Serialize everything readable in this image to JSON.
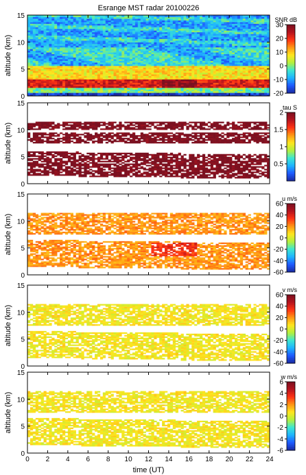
{
  "title": "Esrange MST radar 20100226",
  "chart_data": {
    "type": "heatmap",
    "title": "Esrange MST radar 20100226",
    "xlabel": "time (UT)",
    "x_range": [
      0,
      24
    ],
    "x_ticks": [
      0,
      2,
      4,
      6,
      8,
      10,
      12,
      14,
      16,
      18,
      20,
      22,
      24
    ],
    "colormap": [
      "#1a2aa0",
      "#1e5aff",
      "#1eb4ff",
      "#3ce6d2",
      "#b4f03c",
      "#ffe61e",
      "#ff9614",
      "#ff3214",
      "#b4141e",
      "#7a1020"
    ],
    "panels": [
      {
        "name": "snr",
        "ylabel": "altitude (km)",
        "y_range": [
          0,
          15
        ],
        "y_ticks": [
          0,
          5,
          10,
          15
        ],
        "colorbar_label": "SNR dB",
        "colorbar_range": [
          -20,
          30
        ],
        "colorbar_ticks": [
          30,
          20,
          10,
          0,
          -10,
          -20
        ],
        "description_layers": [
          {
            "alt_from": 0.5,
            "alt_to": 1.5,
            "value": 0
          },
          {
            "alt_from": 1.5,
            "alt_to": 3.0,
            "value": 22
          },
          {
            "alt_from": 3.0,
            "alt_to": 5.5,
            "value": 8
          },
          {
            "alt_from": 5.5,
            "alt_to": 9.0,
            "value": -4
          },
          {
            "alt_from": 9.0,
            "alt_to": 15.0,
            "value": -10
          }
        ]
      },
      {
        "name": "tau",
        "ylabel": "altitude (km)",
        "y_range": [
          0,
          15
        ],
        "y_ticks": [
          0,
          5,
          10,
          15
        ],
        "colorbar_label": "tau S",
        "colorbar_range": [
          0,
          2
        ],
        "colorbar_ticks": [
          2,
          1.5,
          1,
          0.5
        ],
        "dominant_value": 2.0,
        "echo_layers": [
          {
            "alt_from": 1.5,
            "alt_to": 6.0
          },
          {
            "alt_from": 7.5,
            "alt_to": 9.5
          },
          {
            "alt_from": 10.0,
            "alt_to": 11.5
          }
        ]
      },
      {
        "name": "u",
        "ylabel": "altitude (km)",
        "y_range": [
          0,
          15
        ],
        "y_ticks": [
          0,
          5,
          10,
          15
        ],
        "colorbar_label": "u m/s",
        "colorbar_range": [
          -60,
          60
        ],
        "colorbar_ticks": [
          60,
          40,
          20,
          0,
          -20,
          -40,
          -60
        ],
        "dominant_value": 20,
        "echo_layers": [
          {
            "alt_from": 1.5,
            "alt_to": 6.5
          },
          {
            "alt_from": 7.5,
            "alt_to": 11.5
          }
        ]
      },
      {
        "name": "v",
        "ylabel": "altitude (km)",
        "y_range": [
          0,
          15
        ],
        "y_ticks": [
          0,
          5,
          10,
          15
        ],
        "colorbar_label": "v m/s",
        "colorbar_range": [
          -60,
          60
        ],
        "colorbar_ticks": [
          60,
          40,
          20,
          0,
          -20,
          -40,
          -60
        ],
        "dominant_value": 5,
        "echo_layers": [
          {
            "alt_from": 1.5,
            "alt_to": 6.5
          },
          {
            "alt_from": 7.5,
            "alt_to": 11.5
          }
        ]
      },
      {
        "name": "w",
        "ylabel": "altitude (km)",
        "y_range": [
          0,
          15
        ],
        "y_ticks": [
          0,
          5,
          10,
          15
        ],
        "colorbar_label": "w m/s",
        "colorbar_range": [
          -6,
          6
        ],
        "colorbar_ticks": [
          6,
          4,
          2,
          0,
          -2,
          -4,
          -6
        ],
        "dominant_value": 0.5,
        "echo_layers": [
          {
            "alt_from": 1.5,
            "alt_to": 6.5
          },
          {
            "alt_from": 7.5,
            "alt_to": 11.5
          }
        ]
      }
    ]
  }
}
